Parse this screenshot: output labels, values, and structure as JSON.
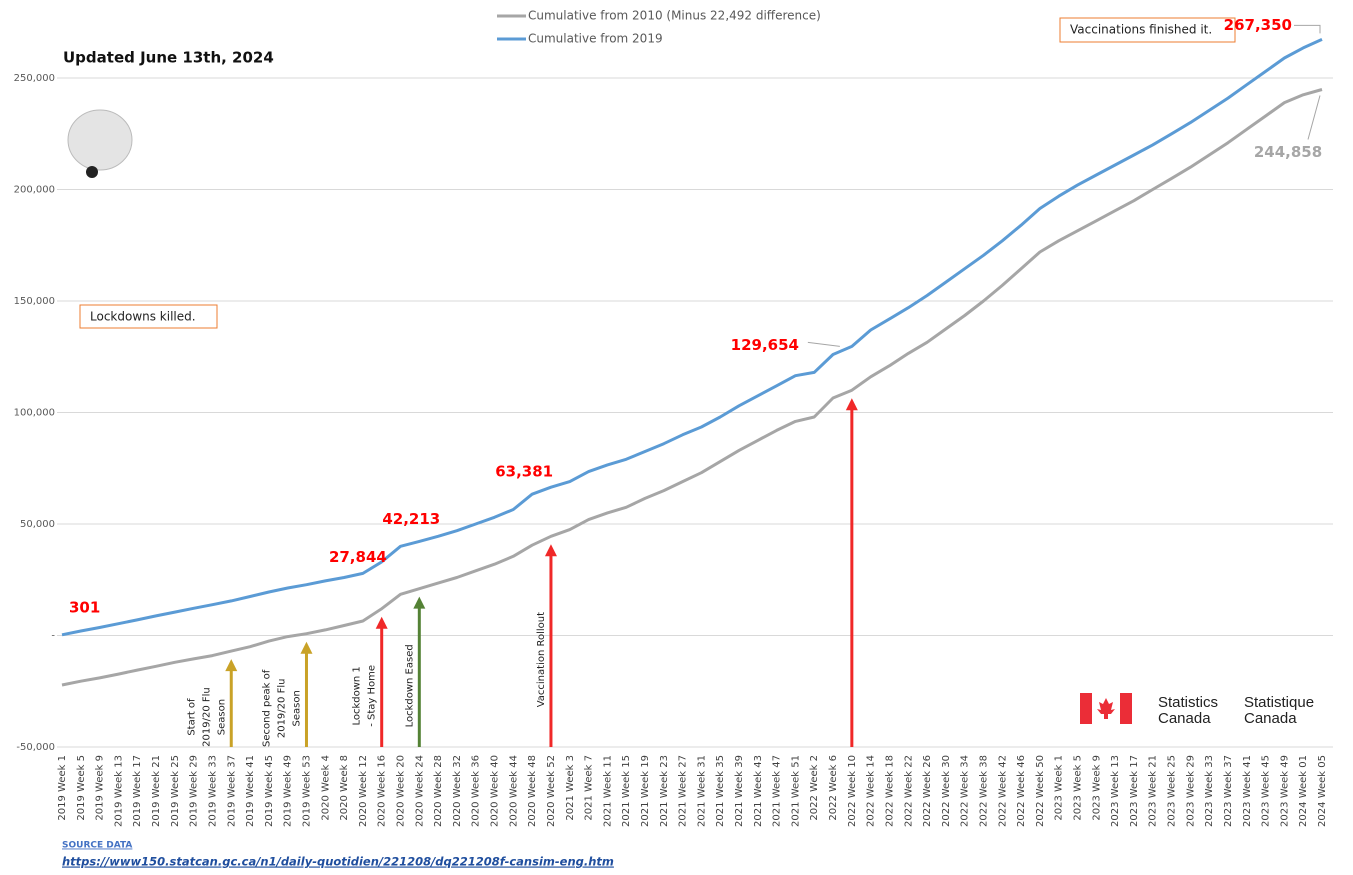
{
  "chart_data": {
    "type": "line",
    "subtitle": "Updated June 13th, 2024",
    "categories": [
      "2019 Week 1",
      "2019 Week 5",
      "2019 Week 9",
      "2019 Week 13",
      "2019 Week 17",
      "2019 Week 21",
      "2019 Week 25",
      "2019 Week 29",
      "2019 Week 33",
      "2019 Week 37",
      "2019 Week 41",
      "2019 Week 45",
      "2019 Week 49",
      "2019 Week 53",
      "2020 Week 4",
      "2020 Week 8",
      "2020 Week 12",
      "2020 Week 16",
      "2020 Week 20",
      "2020 Week 24",
      "2020 Week 28",
      "2020 Week 32",
      "2020 Week 36",
      "2020 Week 40",
      "2020 Week 44",
      "2020 Week 48",
      "2020 Week 52",
      "2021 Week 3",
      "2021 Week 7",
      "2021 Week 11",
      "2021 Week 15",
      "2021 Week 19",
      "2021 Week 23",
      "2021 Week 27",
      "2021 Week 31",
      "2021 Week 35",
      "2021 Week 39",
      "2021 Week 43",
      "2021 Week 47",
      "2021 Week 51",
      "2022 Week 2",
      "2022 Week 6",
      "2022 Week 10",
      "2022 Week 14",
      "2022 Week 18",
      "2022 Week 22",
      "2022 Week 26",
      "2022 Week 30",
      "2022 Week 34",
      "2022 Week 38",
      "2022 Week 42",
      "2022 Week 46",
      "2022 Week 50",
      "2023 Week 1",
      "2023 Week 5",
      "2023 Week 9",
      "2023 Week 13",
      "2023 Week 17",
      "2023 Week 21",
      "2023 Week 25",
      "2023 Week 29",
      "2023 Week 33",
      "2023 Week 37",
      "2023 Week 41",
      "2023 Week 45",
      "2023 Week 49",
      "2024 Week 01",
      "2024 Week 05"
    ],
    "series": [
      {
        "name": "Cumulative from 2010 (Minus 22,492 difference)",
        "color": "#a6a6a6",
        "label_color": "#a6a6a6",
        "values": [
          -22200,
          -20500,
          -19000,
          -17300,
          -15500,
          -13800,
          -12000,
          -10500,
          -9000,
          -7000,
          -5000,
          -2500,
          -500,
          800,
          2500,
          4500,
          6500,
          12000,
          18500,
          21000,
          23500,
          26000,
          29000,
          32000,
          35500,
          40500,
          44500,
          47500,
          52000,
          55000,
          57500,
          61500,
          65000,
          69000,
          73000,
          78000,
          83000,
          87500,
          92000,
          96000,
          98000,
          106500,
          110000,
          116000,
          121000,
          126500,
          131500,
          137500,
          143500,
          150000,
          157000,
          164500,
          172000,
          177000,
          181500,
          186000,
          190500,
          195000,
          200000,
          205000,
          210000,
          215500,
          221000,
          227000,
          233000,
          239000,
          242500,
          244858
        ],
        "value_labels": [
          null,
          null,
          null,
          null,
          null,
          null,
          null,
          null,
          null,
          null,
          null,
          null,
          null,
          null,
          null,
          null,
          null,
          null,
          null,
          null,
          null,
          null,
          null,
          null,
          null,
          null,
          null,
          null,
          null,
          null,
          null,
          null,
          null,
          null,
          null,
          null,
          null,
          null,
          null,
          null,
          null,
          null,
          null,
          null,
          null,
          null,
          null,
          null,
          null,
          null,
          null,
          null,
          null,
          null,
          null,
          null,
          null,
          null,
          null,
          null,
          null,
          null,
          null,
          null,
          null,
          null,
          null,
          "244,858"
        ]
      },
      {
        "name": "Cumulative from 2019",
        "color": "#5b9bd5",
        "label_color": "#ff0000",
        "values": [
          301,
          2000,
          3600,
          5300,
          7000,
          8800,
          10500,
          12200,
          13800,
          15500,
          17500,
          19500,
          21300,
          22800,
          24500,
          26000,
          27844,
          33000,
          40000,
          42213,
          44500,
          47000,
          50000,
          53000,
          56500,
          63381,
          66500,
          69000,
          73500,
          76500,
          79000,
          82500,
          86000,
          90000,
          93500,
          98000,
          103000,
          107500,
          112000,
          116500,
          118000,
          126000,
          129654,
          137000,
          142000,
          147000,
          152500,
          158500,
          164500,
          170500,
          177000,
          184000,
          191500,
          197000,
          202000,
          206500,
          211000,
          215500,
          220000,
          225000,
          230000,
          235500,
          241000,
          247000,
          253000,
          259000,
          263500,
          267350
        ],
        "value_labels": [
          "301",
          null,
          null,
          null,
          null,
          null,
          null,
          null,
          null,
          null,
          null,
          null,
          null,
          null,
          null,
          null,
          "27,844",
          null,
          null,
          "42,213",
          null,
          null,
          null,
          null,
          null,
          "63,381",
          null,
          null,
          null,
          null,
          null,
          null,
          null,
          null,
          null,
          null,
          null,
          null,
          null,
          null,
          null,
          null,
          "129,654",
          null,
          null,
          null,
          null,
          null,
          null,
          null,
          null,
          null,
          null,
          null,
          null,
          null,
          null,
          null,
          null,
          null,
          null,
          null,
          null,
          null,
          null,
          null,
          null,
          "267,350"
        ]
      }
    ],
    "ylim": [
      -50000,
      285000
    ],
    "yticks": [
      {
        "value": -50000,
        "label": "-50,000"
      },
      {
        "value": 0,
        "label": "-"
      },
      {
        "value": 50000,
        "label": "50,000"
      },
      {
        "value": 100000,
        "label": "100,000"
      },
      {
        "value": 150000,
        "label": "150,000"
      },
      {
        "value": 200000,
        "label": "200,000"
      },
      {
        "value": 250000,
        "label": "250,000"
      }
    ],
    "grid": true,
    "legend": "top",
    "events": [
      {
        "category": "2019 Week 37",
        "lines": [
          "Start of",
          "2019/20 Flu",
          "Season"
        ],
        "color": "#c9a227"
      },
      {
        "category": "2019 Week 53",
        "lines": [
          "Second peak of",
          "2019/20 Flu",
          "Season"
        ],
        "color": "#c9a227"
      },
      {
        "category": "2020 Week 16",
        "lines": [
          "Lockdown 1",
          "- Stay Home"
        ],
        "color": "#f02828"
      },
      {
        "category": "2020 Week 24",
        "lines": [
          "Lockdown Eased"
        ],
        "color": "#548235"
      },
      {
        "category": "2020 Week 52",
        "lines": [
          "Vaccination Rollout"
        ],
        "color": "#f02828"
      },
      {
        "category": "2022 Week 10",
        "lines": [],
        "color": "#f02828"
      }
    ],
    "notes": [
      "Lockdowns killed.",
      "Vaccinations finished it."
    ],
    "logo": {
      "en": [
        "Statistics",
        "Canada"
      ],
      "fr": [
        "Statistique",
        "Canada"
      ]
    },
    "source": {
      "heading": "SOURCE DATA",
      "url": "https://www150.statcan.gc.ca/n1/daily-quotidien/221208/dq221208f-cansim-eng.htm"
    }
  }
}
